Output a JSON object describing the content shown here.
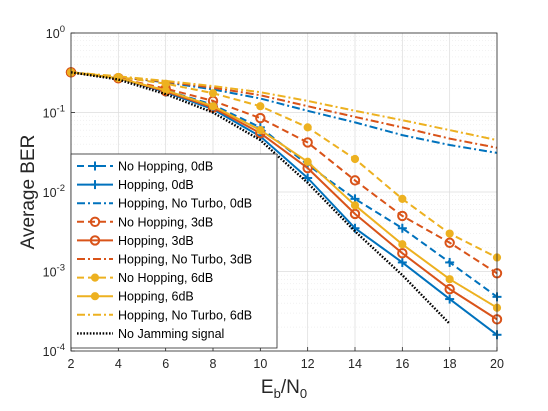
{
  "chart_data": {
    "type": "line",
    "xlabel": "E_b/N_0",
    "xlabel_parts": {
      "base1": "E",
      "sub1": "b",
      "slash": "/",
      "base2": "N",
      "sub2": "0"
    },
    "ylabel": "Average BER",
    "xlim": [
      2,
      20
    ],
    "ylim": [
      0.0001,
      1
    ],
    "yscale": "log",
    "grid": "on (major and minor)",
    "legend_position": "bottom-left",
    "x_ticks": [
      "2",
      "4",
      "6",
      "8",
      "10",
      "12",
      "14",
      "16",
      "18",
      "20"
    ],
    "y_ticks": [
      {
        "base": "10",
        "exp": "-4"
      },
      {
        "base": "10",
        "exp": "-3"
      },
      {
        "base": "10",
        "exp": "-2"
      },
      {
        "base": "10",
        "exp": "-1"
      },
      {
        "base": "10",
        "exp": "0"
      }
    ],
    "series": [
      {
        "name": "No Hopping, 0dB",
        "color": "#0072BD",
        "dash": "dashed",
        "marker": "plus",
        "x": [
          2,
          4,
          6,
          8,
          10,
          12,
          14,
          16,
          18,
          20
        ],
        "y": [
          0.32,
          0.27,
          0.19,
          0.125,
          0.065,
          0.022,
          0.0082,
          0.0035,
          0.0013,
          0.00048
        ]
      },
      {
        "name": "Hopping, 0dB",
        "color": "#0072BD",
        "dash": "solid",
        "marker": "plus",
        "x": [
          2,
          4,
          6,
          8,
          10,
          12,
          14,
          16,
          18,
          20
        ],
        "y": [
          0.32,
          0.27,
          0.18,
          0.11,
          0.05,
          0.015,
          0.0035,
          0.0013,
          0.00045,
          0.00016
        ]
      },
      {
        "name": "Hopping, No Turbo, 0dB",
        "color": "#0072BD",
        "dash": "dashdot",
        "marker": "none",
        "x": [
          2,
          4,
          6,
          8,
          10,
          12,
          14,
          16,
          18,
          20
        ],
        "y": [
          0.32,
          0.28,
          0.24,
          0.195,
          0.15,
          0.105,
          0.075,
          0.052,
          0.039,
          0.031
        ]
      },
      {
        "name": "No Hopping, 3dB",
        "color": "#D95319",
        "dash": "dashed",
        "marker": "circle",
        "x": [
          2,
          4,
          6,
          8,
          10,
          12,
          14,
          16,
          18,
          20
        ],
        "y": [
          0.32,
          0.27,
          0.2,
          0.14,
          0.085,
          0.042,
          0.014,
          0.005,
          0.0023,
          0.00095
        ]
      },
      {
        "name": "Hopping, 3dB",
        "color": "#D95319",
        "dash": "solid",
        "marker": "circle",
        "x": [
          2,
          4,
          6,
          8,
          10,
          12,
          14,
          16,
          18,
          20
        ],
        "y": [
          0.32,
          0.27,
          0.185,
          0.115,
          0.055,
          0.02,
          0.0053,
          0.0017,
          0.0006,
          0.00025
        ]
      },
      {
        "name": "Hopping, No Turbo, 3dB",
        "color": "#D95319",
        "dash": "dashdot",
        "marker": "none",
        "x": [
          2,
          4,
          6,
          8,
          10,
          12,
          14,
          16,
          18,
          20
        ],
        "y": [
          0.32,
          0.28,
          0.245,
          0.205,
          0.165,
          0.12,
          0.088,
          0.065,
          0.047,
          0.036
        ]
      },
      {
        "name": "No Hopping, 6dB",
        "color": "#EDB120",
        "dash": "dashed",
        "marker": "dot",
        "x": [
          2,
          4,
          6,
          8,
          10,
          12,
          14,
          16,
          18,
          20
        ],
        "y": [
          0.32,
          0.28,
          0.23,
          0.175,
          0.12,
          0.065,
          0.026,
          0.0082,
          0.003,
          0.0015
        ]
      },
      {
        "name": "Hopping, 6dB",
        "color": "#EDB120",
        "dash": "solid",
        "marker": "dot",
        "x": [
          2,
          4,
          6,
          8,
          10,
          12,
          14,
          16,
          18,
          20
        ],
        "y": [
          0.32,
          0.27,
          0.19,
          0.12,
          0.06,
          0.024,
          0.0068,
          0.0022,
          0.0008,
          0.00035
        ]
      },
      {
        "name": "Hopping, No Turbo, 6dB",
        "color": "#EDB120",
        "dash": "dashdot",
        "marker": "none",
        "x": [
          2,
          4,
          6,
          8,
          10,
          12,
          14,
          16,
          18,
          20
        ],
        "y": [
          0.32,
          0.285,
          0.25,
          0.215,
          0.18,
          0.14,
          0.105,
          0.08,
          0.06,
          0.045
        ]
      },
      {
        "name": "No Jamming signal",
        "color": "#000000",
        "dash": "dotted",
        "marker": "none",
        "x": [
          2,
          4,
          6,
          8,
          10,
          12,
          14,
          16,
          18
        ],
        "y": [
          0.32,
          0.26,
          0.17,
          0.1,
          0.045,
          0.013,
          0.0032,
          0.0009,
          0.00022
        ]
      }
    ]
  }
}
